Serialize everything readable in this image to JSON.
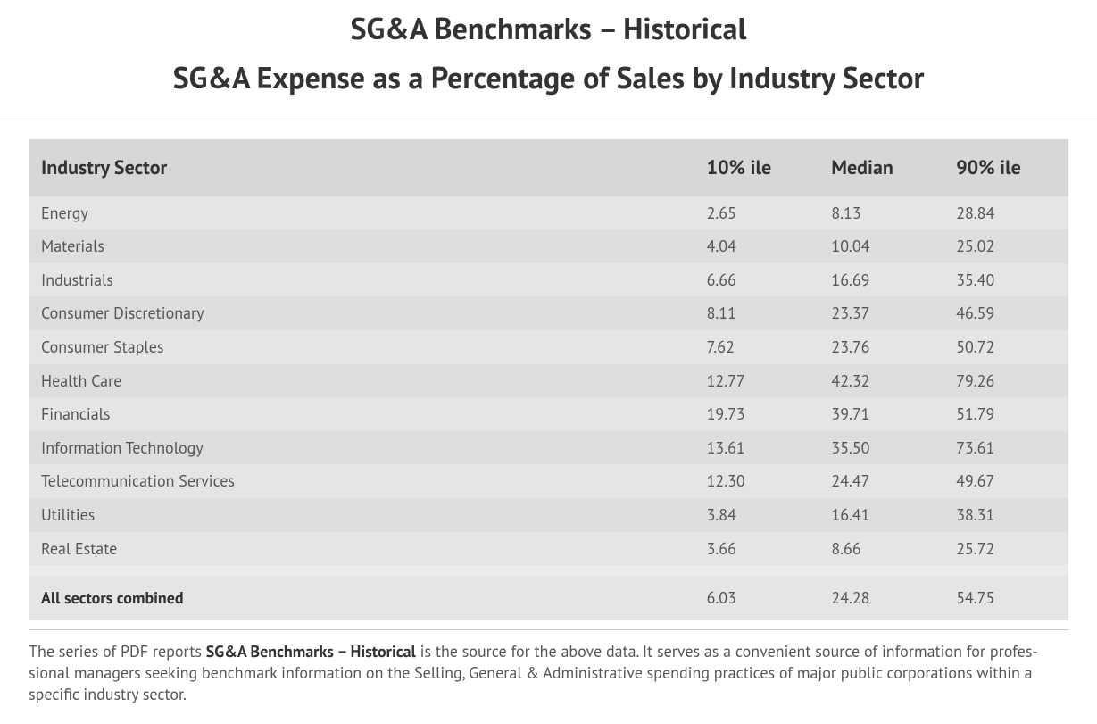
{
  "titles": {
    "main": "SG&A Benchmarks – Historical",
    "sub": "SG&A Expense as a Percentage of Sales by Industry Sector"
  },
  "table": {
    "columns": [
      "Industry Sector",
      "10% ile",
      "Median",
      "90% ile"
    ],
    "rows": [
      {
        "sector": "Energy",
        "p10": "2.65",
        "median": "8.13",
        "p90": "28.84"
      },
      {
        "sector": "Materials",
        "p10": "4.04",
        "median": "10.04",
        "p90": "25.02"
      },
      {
        "sector": "Industrials",
        "p10": "6.66",
        "median": "16.69",
        "p90": "35.40"
      },
      {
        "sector": "Consumer Discretionary",
        "p10": "8.11",
        "median": "23.37",
        "p90": "46.59"
      },
      {
        "sector": "Consumer Staples",
        "p10": "7.62",
        "median": "23.76",
        "p90": "50.72"
      },
      {
        "sector": "Health Care",
        "p10": "12.77",
        "median": "42.32",
        "p90": "79.26"
      },
      {
        "sector": "Financials",
        "p10": "19.73",
        "median": "39.71",
        "p90": "51.79"
      },
      {
        "sector": "Information Technology",
        "p10": "13.61",
        "median": "35.50",
        "p90": "73.61"
      },
      {
        "sector": "Telecommunication Services",
        "p10": "12.30",
        "median": "24.47",
        "p90": "49.67"
      },
      {
        "sector": "Utilities",
        "p10": "3.84",
        "median": "16.41",
        "p90": "38.31"
      },
      {
        "sector": "Real Estate",
        "p10": "3.66",
        "median": "8.66",
        "p90": "25.72"
      }
    ],
    "total": {
      "sector": "All sectors combined",
      "p10": "6.03",
      "median": "24.28",
      "p90": "54.75"
    },
    "styling": {
      "header_bg": "#d7d7d6",
      "row_odd_bg": "#e5e5e4",
      "row_even_bg": "#dedede",
      "spacer_bg": "#ececec",
      "header_fontsize": 22,
      "body_fontsize": 18,
      "text_color": "#555555",
      "header_text_color": "#333333",
      "col_widths_pct": [
        64,
        12,
        12,
        12
      ]
    }
  },
  "footer": {
    "pre": "The series of PDF reports ",
    "bold": "SG&A Benchmarks – Historical",
    "post": " is the source for the above data. It serves as a convenient source of information for profes­sional managers seeking benchmark information on the Selling, General & Administrative spending practices of major public corporations within a specific industry sector."
  },
  "colors": {
    "background": "#ffffff",
    "title_color": "#333333",
    "divider": "#dcdcdc"
  },
  "typography": {
    "title_fontsize": 34,
    "title_fontweight": 700,
    "body_font": "PT Sans"
  }
}
